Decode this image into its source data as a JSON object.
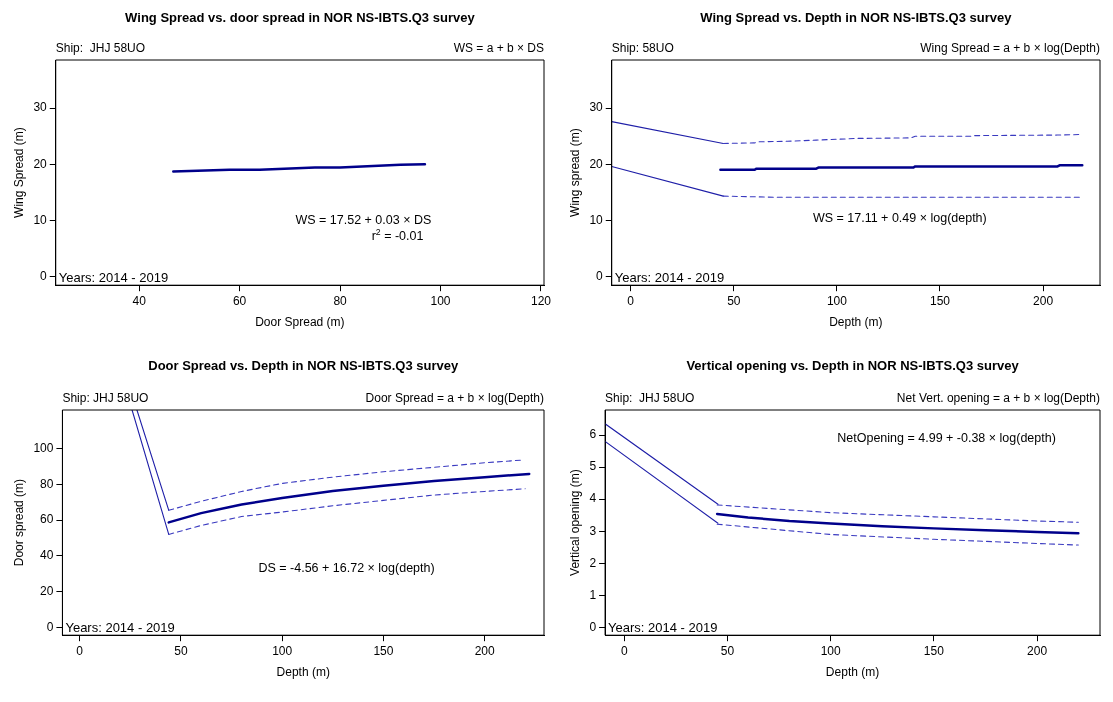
{
  "chart_data": [
    {
      "type": "line",
      "title": "Wing Spread vs. door spread in NOR NS-IBTS.Q3 survey",
      "subtitle": "Ship:  JHJ 58UO",
      "xlabel": "Door Spread (m)",
      "ylabel": "Wing Spread (m)",
      "xlim": [
        23.4,
        120.6
      ],
      "xticks": [
        40,
        60,
        80,
        100,
        120
      ],
      "ylim": [
        -1.6,
        38.6
      ],
      "yticks": [
        0,
        10,
        20,
        30
      ],
      "grid": false,
      "legend": false,
      "marker": "none",
      "annotations": [
        "WS = a + b × DS",
        "WS = 17.52 + 0.03 × DS",
        "r$^{2}$ = -0.01",
        "Years: 2014 - 2019"
      ],
      "series": [
        {
          "color": "#00008b",
          "line_style": "solid",
          "x": [
            46.8,
            58,
            64,
            75,
            80,
            92,
            96.9
          ],
          "values": [
            18.7,
            19.0,
            19.0,
            19.4,
            19.4,
            19.9,
            20.0
          ]
        }
      ]
    },
    {
      "type": "line",
      "title": "Wing Spread vs. Depth in NOR NS-IBTS.Q3 survey",
      "subtitle": "Ship: 58UO",
      "xlabel": "Depth (m)",
      "ylabel": "Wing spread (m)",
      "xlim": [
        -9.2,
        227.6
      ],
      "xticks": [
        0,
        50,
        100,
        150,
        200
      ],
      "ylim": [
        -1.6,
        38.6
      ],
      "yticks": [
        0,
        10,
        20,
        30
      ],
      "grid": false,
      "legend": false,
      "marker": "none",
      "annotations": [
        "Wing Spread = a + b × log(Depth)",
        "WS = 17.11 + 0.49 × log(depth)",
        "Years: 2014 - 2019"
      ],
      "series": [
        {
          "color": "#00008b",
          "line_style": "solid",
          "x": [
            43.5,
            60,
            61,
            90,
            91,
            137,
            138,
            207,
            208,
            219
          ],
          "values": [
            19.0,
            19.0,
            19.2,
            19.2,
            19.4,
            19.4,
            19.6,
            19.6,
            19.8,
            19.8
          ]
        },
        {
          "color": "#3a3ac0",
          "line_style": "dashed",
          "x": [
            44.9,
            60,
            62,
            76,
            90,
            110,
            136,
            138,
            165,
            166,
            207,
            218.6
          ],
          "values": [
            23.7,
            23.8,
            24.0,
            24.1,
            24.3,
            24.6,
            24.7,
            25.0,
            25.0,
            25.1,
            25.2,
            25.3
          ]
        },
        {
          "color": "#3a3ac0",
          "line_style": "dashed",
          "x": [
            44.9,
            70,
            218.6
          ],
          "values": [
            14.3,
            14.1,
            14.1
          ]
        },
        {
          "color": "#1f1fa8",
          "line_style": "solid",
          "x": [
            -9.2,
            44.9
          ],
          "values": [
            27.6,
            23.7
          ]
        },
        {
          "color": "#1f1fa8",
          "line_style": "solid",
          "x": [
            -9.2,
            44.9
          ],
          "values": [
            19.6,
            14.3
          ]
        }
      ]
    },
    {
      "type": "line",
      "title": "Door Spread vs. Depth in NOR NS-IBTS.Q3 survey",
      "subtitle": "Ship: JHJ 58UO",
      "xlabel": "Depth (m)",
      "ylabel": "Door spread (m)",
      "xlim": [
        -8.5,
        229.3
      ],
      "xticks": [
        0,
        50,
        100,
        150,
        200
      ],
      "ylim": [
        -4.3,
        121.5
      ],
      "yticks": [
        0,
        20,
        40,
        60,
        80,
        100
      ],
      "grid": false,
      "legend": false,
      "marker": "none",
      "annotations": [
        "Door Spread = a + b × log(Depth)",
        "DS = -4.56 + 16.72 × log(depth)",
        "Years: 2014 - 2019"
      ],
      "series": [
        {
          "color": "#00008b",
          "line_style": "solid",
          "x": [
            44,
            60,
            80,
            100,
            125,
            150,
            175,
            200,
            222
          ],
          "values": [
            58.7,
            63.9,
            68.7,
            72.4,
            76.2,
            79.2,
            81.8,
            84.0,
            85.8
          ]
        },
        {
          "color": "#3a3ac0",
          "line_style": "dashed",
          "x": [
            44,
            60,
            80,
            100,
            125,
            150,
            175,
            200,
            218
          ],
          "values": [
            65.5,
            70.5,
            76,
            80.5,
            84,
            87,
            89.5,
            92,
            93.5
          ]
        },
        {
          "color": "#3a3ac0",
          "line_style": "dashed",
          "x": [
            44,
            60,
            80,
            100,
            125,
            150,
            175,
            200,
            220
          ],
          "values": [
            52,
            57,
            62,
            64.5,
            68,
            71,
            74,
            76,
            77.5
          ]
        },
        {
          "color": "#1f1fa8",
          "line_style": "solid",
          "x": [
            28.3,
            44
          ],
          "values": [
            121.5,
            65.5
          ]
        },
        {
          "color": "#1f1fa8",
          "line_style": "solid",
          "x": [
            25.9,
            44
          ],
          "values": [
            121.5,
            52
          ]
        }
      ]
    },
    {
      "type": "line",
      "title": "Vertical opening vs. Depth in NOR NS-IBTS.Q3 survey",
      "subtitle": "Ship:  JHJ 58UO",
      "xlabel": "Depth (m)",
      "ylabel": "Vertical opening (m)",
      "xlim": [
        -9.3,
        230.5
      ],
      "xticks": [
        0,
        50,
        100,
        150,
        200
      ],
      "ylim": [
        -0.24,
        6.78
      ],
      "yticks": [
        0,
        1,
        2,
        3,
        4,
        5,
        6
      ],
      "grid": false,
      "legend": false,
      "marker": "none",
      "annotations": [
        "Net Vert. opening = a + b × log(Depth)",
        "NetOpening = 4.99 + -0.38 × log(depth)",
        "Years: 2014 - 2019"
      ],
      "series": [
        {
          "color": "#00008b",
          "line_style": "solid",
          "x": [
            45,
            60,
            80,
            100,
            125,
            150,
            175,
            200,
            220
          ],
          "values": [
            3.54,
            3.43,
            3.32,
            3.24,
            3.16,
            3.09,
            3.03,
            2.98,
            2.94
          ]
        },
        {
          "color": "#3a3ac0",
          "line_style": "dashed",
          "x": [
            45,
            100,
            150,
            200,
            220
          ],
          "values": [
            3.82,
            3.58,
            3.45,
            3.32,
            3.28
          ]
        },
        {
          "color": "#3a3ac0",
          "line_style": "dashed",
          "x": [
            45,
            100,
            150,
            200,
            220
          ],
          "values": [
            3.22,
            2.9,
            2.75,
            2.62,
            2.57
          ]
        },
        {
          "color": "#1f1fa8",
          "line_style": "solid",
          "x": [
            -9.3,
            45.4
          ],
          "values": [
            6.35,
            3.84
          ]
        },
        {
          "color": "#1f1fa8",
          "line_style": "solid",
          "x": [
            -9.3,
            45.4
          ],
          "values": [
            5.8,
            3.25
          ]
        }
      ]
    }
  ]
}
